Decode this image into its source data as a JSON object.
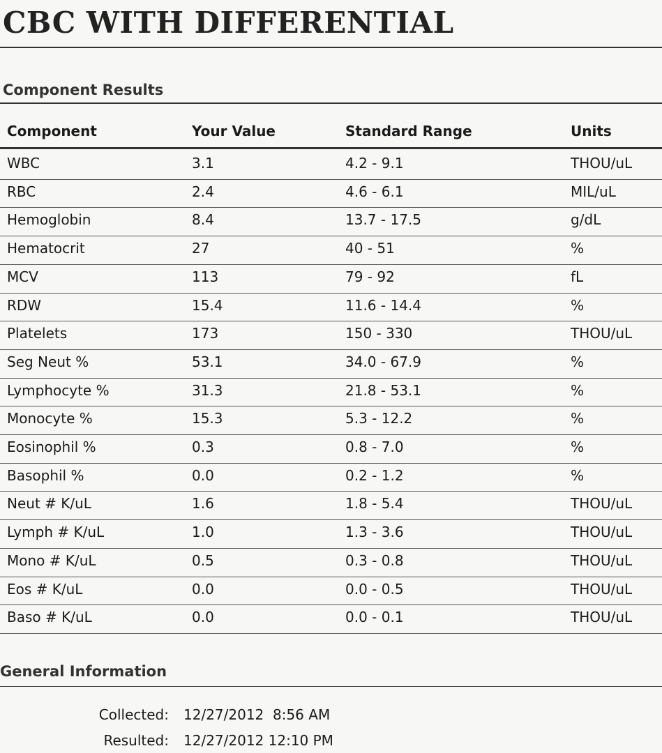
{
  "title": "CBC WITH DIFFERENTIAL",
  "results": {
    "heading": "Component Results",
    "columns": [
      "Component",
      "Your Value",
      "Standard Range",
      "Units"
    ],
    "rows": [
      [
        "WBC",
        "3.1",
        "4.2 - 9.1",
        "THOU/uL"
      ],
      [
        "RBC",
        "2.4",
        "4.6 - 6.1",
        "MIL/uL"
      ],
      [
        "Hemoglobin",
        "8.4",
        "13.7 - 17.5",
        "g/dL"
      ],
      [
        "Hematocrit",
        "27",
        "40 - 51",
        "%"
      ],
      [
        "MCV",
        "113",
        "79 - 92",
        "fL"
      ],
      [
        "RDW",
        "15.4",
        "11.6 - 14.4",
        "%"
      ],
      [
        "Platelets",
        "173",
        "150 - 330",
        "THOU/uL"
      ],
      [
        "Seg Neut %",
        "53.1",
        "34.0 - 67.9",
        "%"
      ],
      [
        "Lymphocyte %",
        "31.3",
        "21.8 - 53.1",
        "%"
      ],
      [
        "Monocyte %",
        "15.3",
        "5.3 - 12.2",
        "%"
      ],
      [
        "Eosinophil %",
        "0.3",
        "0.8 - 7.0",
        "%"
      ],
      [
        "Basophil %",
        "0.0",
        "0.2 - 1.2",
        "%"
      ],
      [
        "Neut # K/uL",
        "1.6",
        "1.8 - 5.4",
        "THOU/uL"
      ],
      [
        "Lymph # K/uL",
        "1.0",
        "1.3 - 3.6",
        "THOU/uL"
      ],
      [
        "Mono # K/uL",
        "0.5",
        "0.3 - 0.8",
        "THOU/uL"
      ],
      [
        "Eos # K/uL",
        "0.0",
        "0.0 - 0.5",
        "THOU/uL"
      ],
      [
        "Baso # K/uL",
        "0.0",
        "0.0 - 0.1",
        "THOU/uL"
      ]
    ]
  },
  "general": {
    "heading": "General Information",
    "collected": {
      "label": "Collected:",
      "value": "12/27/2012  8:56 AM"
    },
    "resulted": {
      "label": "Resulted:",
      "value": "12/27/2012 12:10 PM"
    }
  }
}
